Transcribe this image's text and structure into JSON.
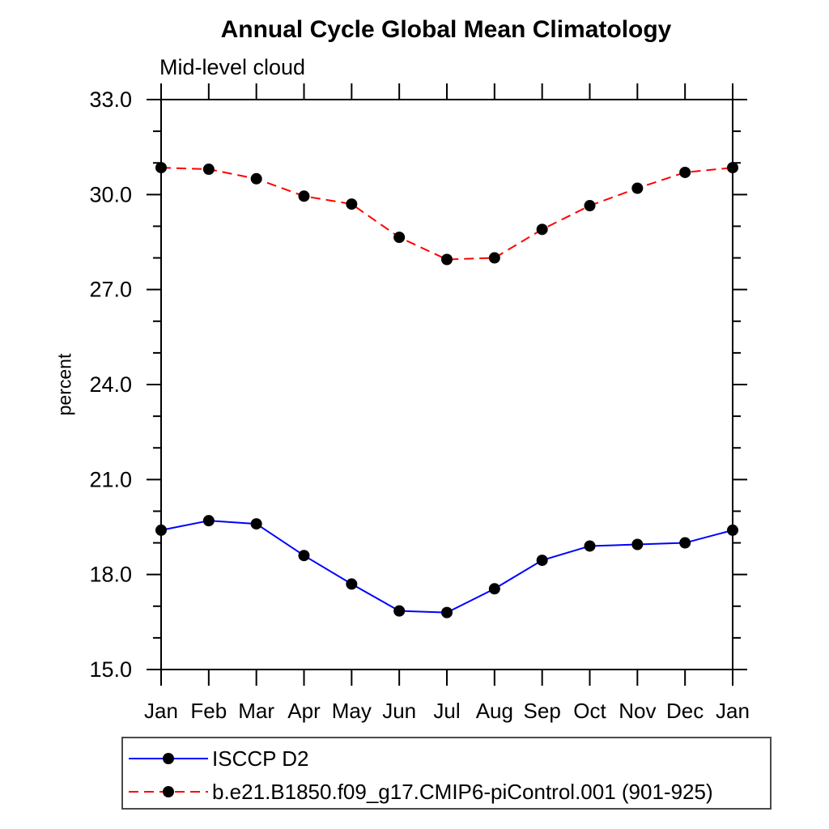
{
  "page": {
    "background": "#ffffff"
  },
  "chart_data": {
    "type": "line",
    "title": "Annual Cycle Global Mean Climatology",
    "subtitle": "Mid-level cloud",
    "ylabel": "percent",
    "xlabel": "",
    "categories": [
      "Jan",
      "Feb",
      "Mar",
      "Apr",
      "May",
      "Jun",
      "Jul",
      "Aug",
      "Sep",
      "Oct",
      "Nov",
      "Dec",
      "Jan"
    ],
    "ylim": [
      15.0,
      33.0
    ],
    "ytick_labels": [
      "15.0",
      "18.0",
      "21.0",
      "24.0",
      "27.0",
      "30.0",
      "33.0"
    ],
    "ytick_minor_interval": 1.0,
    "grid": false,
    "axis_color": "#000000",
    "marker": "filled-circle",
    "marker_color": "#000000",
    "legend_position": "bottom-left-box",
    "series": [
      {
        "name": "ISCCP D2",
        "color": "#0000ff",
        "style": "solid",
        "values": [
          19.4,
          19.7,
          19.6,
          18.6,
          17.7,
          16.85,
          16.8,
          17.55,
          18.45,
          18.9,
          18.95,
          19.0,
          19.4
        ]
      },
      {
        "name": "b.e21.B1850.f09_g17.CMIP6-piControl.001 (901-925)",
        "color": "#ff0000",
        "style": "dashed",
        "values": [
          30.85,
          30.8,
          30.5,
          29.95,
          29.7,
          28.65,
          27.95,
          28.0,
          28.9,
          29.65,
          30.2,
          30.7,
          30.85
        ]
      }
    ]
  }
}
